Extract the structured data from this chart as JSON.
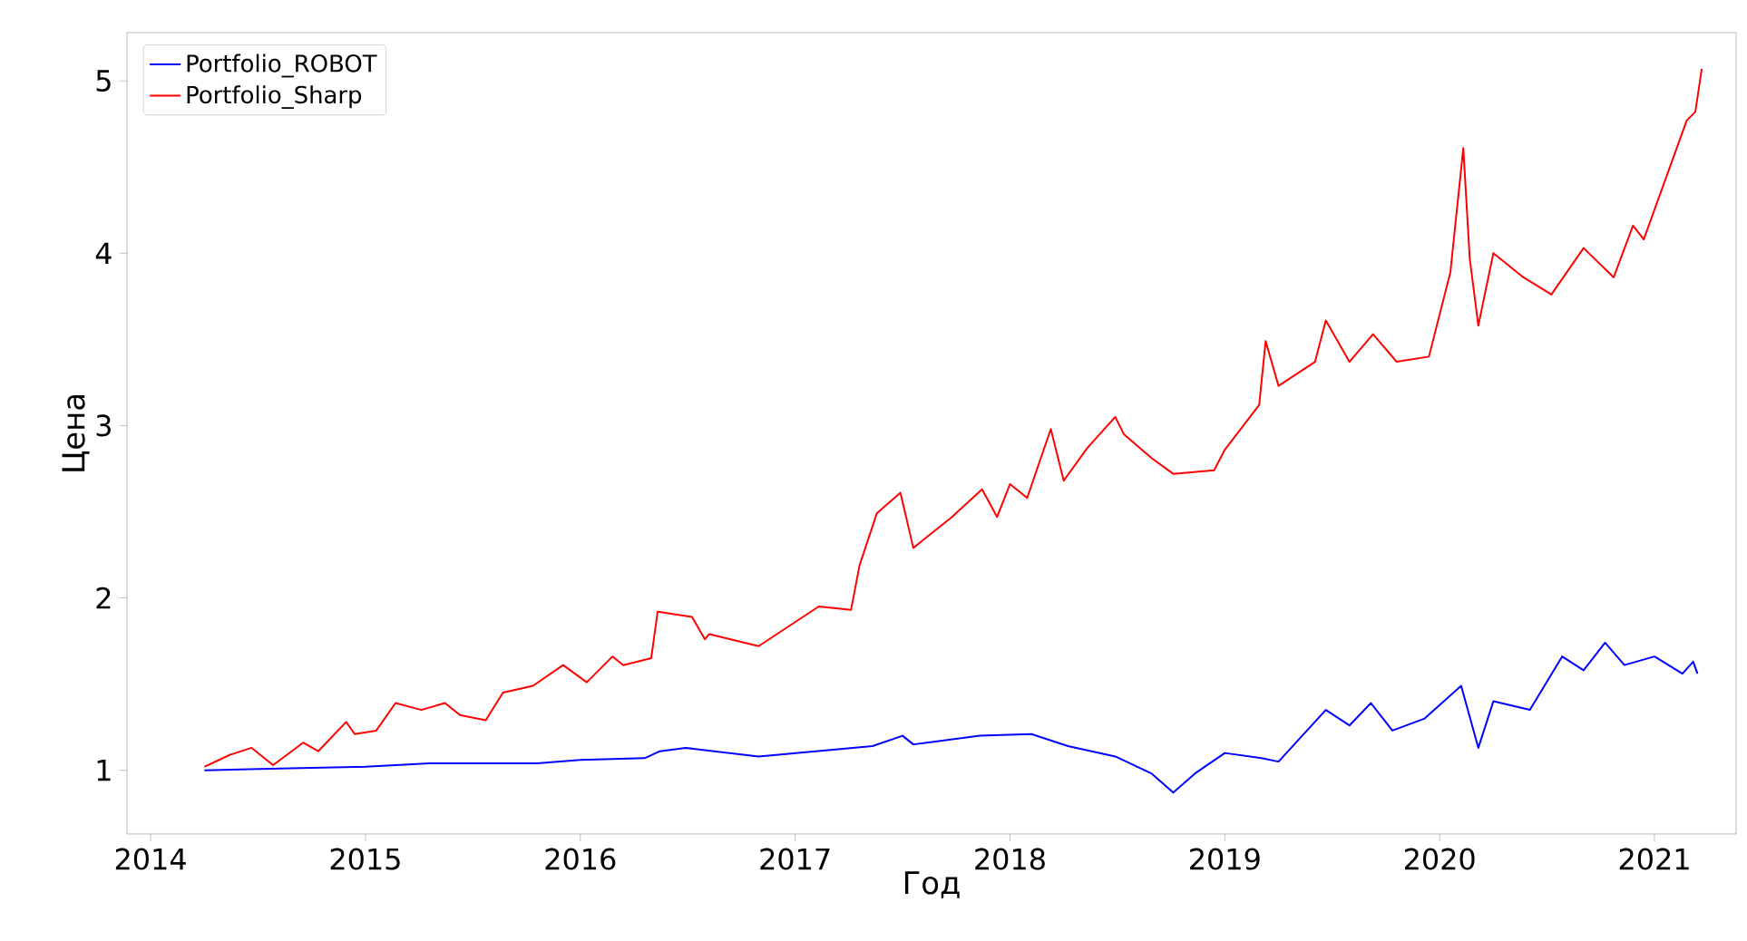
{
  "chart_data": {
    "type": "line",
    "xlabel": "Год",
    "ylabel": "Цена",
    "xlim": [
      2013.89,
      2021.38
    ],
    "ylim": [
      0.63,
      5.28
    ],
    "xticks": [
      2014,
      2015,
      2016,
      2017,
      2018,
      2019,
      2020,
      2021
    ],
    "yticks": [
      1,
      2,
      3,
      4,
      5
    ],
    "grid": false,
    "legend": "top left",
    "series": [
      {
        "name": "Portfolio_ROBOT",
        "color": "#0000ff",
        "x": [
          2014.25,
          2014.6,
          2015.0,
          2015.3,
          2015.8,
          2016.0,
          2016.3,
          2016.37,
          2016.49,
          2016.83,
          2017.36,
          2017.5,
          2017.55,
          2017.86,
          2018.1,
          2018.27,
          2018.49,
          2018.66,
          2018.76,
          2018.86,
          2019.0,
          2019.17,
          2019.25,
          2019.47,
          2019.58,
          2019.68,
          2019.78,
          2019.93,
          2020.1,
          2020.18,
          2020.25,
          2020.42,
          2020.57,
          2020.67,
          2020.77,
          2020.86,
          2021.0,
          2021.13,
          2021.18,
          2021.2
        ],
        "values": [
          1.0,
          1.01,
          1.02,
          1.04,
          1.04,
          1.06,
          1.07,
          1.11,
          1.13,
          1.08,
          1.14,
          1.2,
          1.15,
          1.2,
          1.21,
          1.14,
          1.08,
          0.98,
          0.87,
          0.98,
          1.1,
          1.07,
          1.05,
          1.35,
          1.26,
          1.39,
          1.23,
          1.3,
          1.49,
          1.13,
          1.4,
          1.35,
          1.66,
          1.58,
          1.74,
          1.61,
          1.66,
          1.56,
          1.63,
          1.56
        ]
      },
      {
        "name": "Portfolio_Sharp",
        "color": "#ff0000",
        "x": [
          2014.25,
          2014.37,
          2014.47,
          2014.57,
          2014.71,
          2014.78,
          2014.91,
          2014.95,
          2015.05,
          2015.14,
          2015.26,
          2015.37,
          2015.44,
          2015.56,
          2015.64,
          2015.78,
          2015.92,
          2016.03,
          2016.15,
          2016.2,
          2016.33,
          2016.36,
          2016.52,
          2016.58,
          2016.6,
          2016.83,
          2017.11,
          2017.26,
          2017.3,
          2017.38,
          2017.49,
          2017.55,
          2017.73,
          2017.87,
          2017.94,
          2018.0,
          2018.08,
          2018.19,
          2018.25,
          2018.36,
          2018.49,
          2018.53,
          2018.66,
          2018.76,
          2018.95,
          2019.0,
          2019.16,
          2019.19,
          2019.25,
          2019.42,
          2019.47,
          2019.58,
          2019.69,
          2019.8,
          2019.95,
          2020.05,
          2020.11,
          2020.14,
          2020.18,
          2020.25,
          2020.39,
          2020.52,
          2020.67,
          2020.81,
          2020.9,
          2020.95,
          2021.15,
          2021.19,
          2021.22
        ],
        "values": [
          1.02,
          1.09,
          1.13,
          1.03,
          1.16,
          1.11,
          1.28,
          1.21,
          1.23,
          1.39,
          1.35,
          1.39,
          1.32,
          1.29,
          1.45,
          1.49,
          1.61,
          1.51,
          1.66,
          1.61,
          1.65,
          1.92,
          1.89,
          1.76,
          1.79,
          1.72,
          1.95,
          1.93,
          2.19,
          2.49,
          2.61,
          2.29,
          2.47,
          2.63,
          2.47,
          2.66,
          2.58,
          2.98,
          2.68,
          2.87,
          3.05,
          2.95,
          2.81,
          2.72,
          2.74,
          2.86,
          3.12,
          3.49,
          3.23,
          3.37,
          3.61,
          3.37,
          3.53,
          3.37,
          3.4,
          3.89,
          4.61,
          3.97,
          3.58,
          4.0,
          3.86,
          3.76,
          4.03,
          3.86,
          4.16,
          4.08,
          4.77,
          4.82,
          5.07
        ]
      }
    ]
  }
}
